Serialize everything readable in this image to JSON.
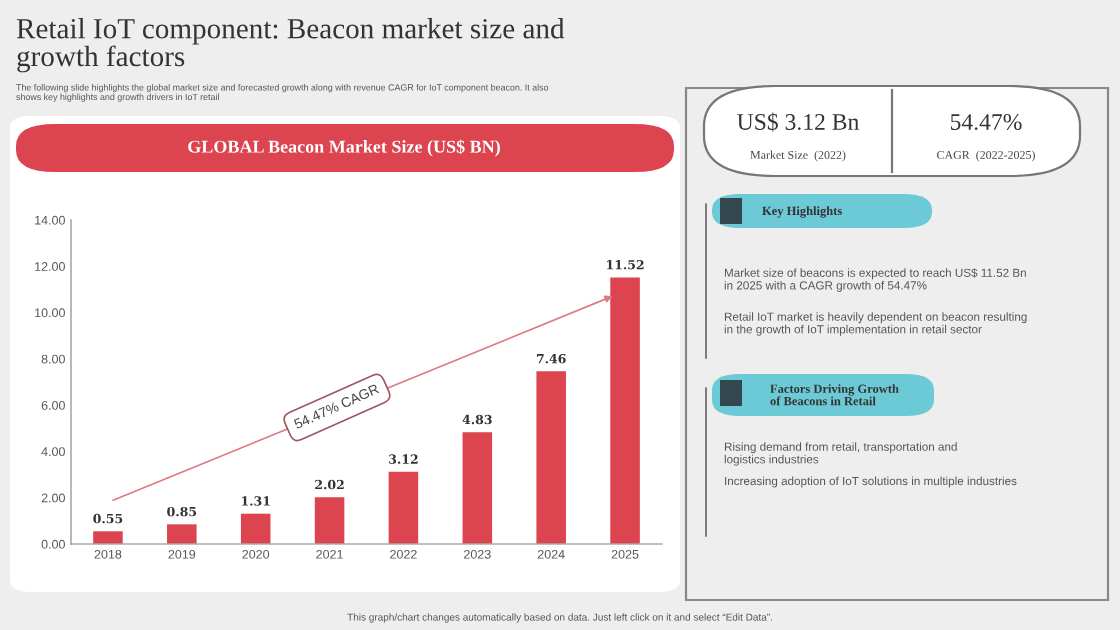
{
  "chart_data": {
    "type": "bar",
    "title": "Retail IoT component: Beacon market size and\ngrowth factors",
    "subtitle": "The following slide highlights the global market size and forecasted growth along with revenue CAGR for IoT component beacon. It also\nshows key highlights and growth drivers in IoT retail",
    "categories": [
      "2018",
      "2019",
      "2020",
      "2021",
      "2022",
      "2023",
      "2024",
      "2025"
    ],
    "values": [
      0.55,
      0.85,
      1.31,
      2.02,
      3.12,
      4.83,
      7.46,
      11.52
    ],
    "color": "#dc4450",
    "data_labels": true,
    "grid": false,
    "ylim": [
      0,
      14
    ],
    "yticks": [
      {
        "value": 0,
        "label": "0.00"
      },
      {
        "value": 2,
        "label": "2.00"
      },
      {
        "value": 4,
        "label": "4.00"
      },
      {
        "value": 6,
        "label": "6.00"
      },
      {
        "value": 8,
        "label": "8.00"
      },
      {
        "value": 10,
        "label": "10.00"
      },
      {
        "value": 12,
        "label": "12.00"
      },
      {
        "value": 14,
        "label": "14.00"
      }
    ],
    "annotations": [
      "GLOBAL Beacon Market Size (US$ BN)",
      "54.47% CAGR",
      "US$ 3.12 Bn",
      "Market Size  (2022)",
      "54.47%",
      "CAGR  (2022-2025)",
      "Key Highlights",
      "Market size of beacons is expected to reach US$ 11.52 Bn\nin 2025 with a CAGR growth of 54.47%",
      "Retail IoT market is heavily dependent on beacon resulting\nin the growth of IoT implementation in retail sector",
      "Factors Driving Growth\nof Beacons in Retail",
      "Rising demand from retail, transportation and\nlogistics industries",
      "Increasing adoption of IoT solutions in multiple industries",
      "This graph/chart changes automatically based on data. Just left click on it and select “Edit Data”."
    ]
  }
}
